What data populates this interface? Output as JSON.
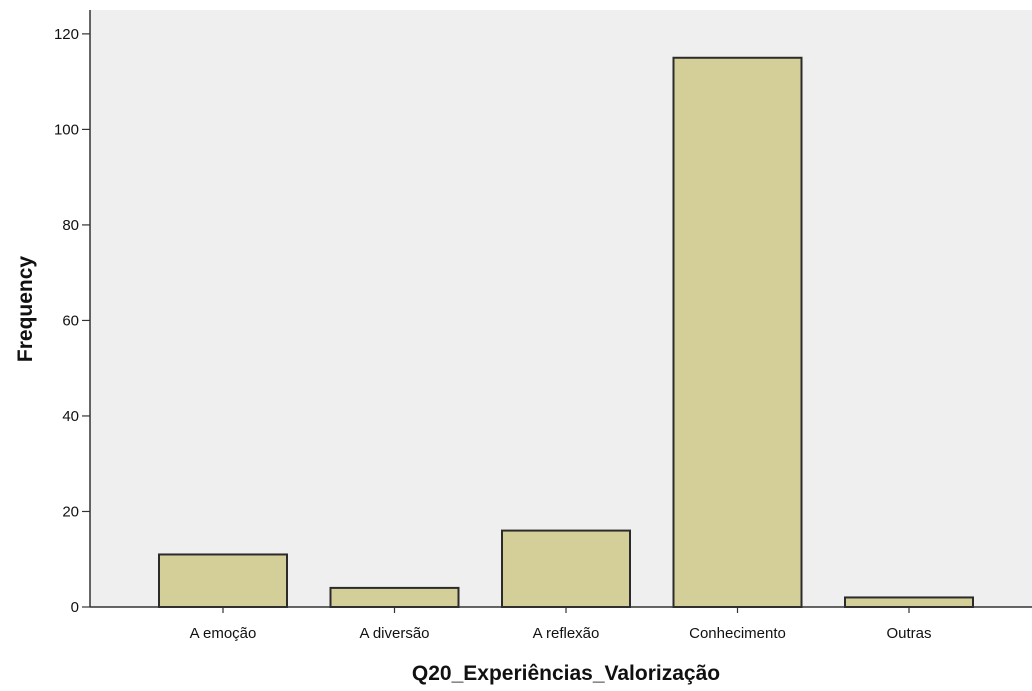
{
  "chart_data": {
    "type": "bar",
    "title": "",
    "xlabel": "Q20_Experiências_Valorização",
    "ylabel": "Frequency",
    "categories": [
      "A emoção",
      "A diversão",
      "A reflexão",
      "Conhecimento",
      "Outras"
    ],
    "values": [
      11,
      4,
      16,
      115,
      2
    ],
    "ylim": [
      0,
      125
    ],
    "yticks": [
      "0",
      "20",
      "40",
      "60",
      "80",
      "100",
      "120"
    ],
    "grid": false,
    "legend": "none"
  },
  "colors": {
    "plot_background": "#efefef",
    "bar_fill": "#d4cf98",
    "bar_stroke": "#2b2b2b",
    "axis": "#333333",
    "text": "#111111"
  }
}
